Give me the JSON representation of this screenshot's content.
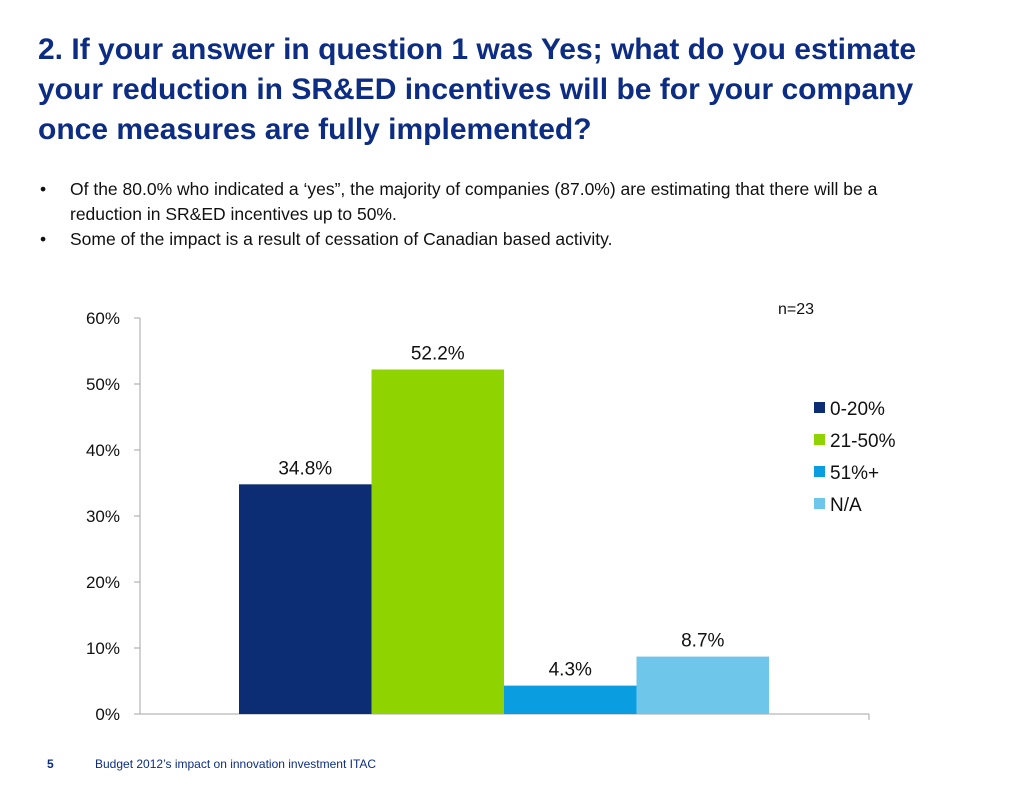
{
  "title": "2. If your answer in question 1 was Yes; what do you estimate your reduction in SR&ED incentives will be for your company once measures are fully implemented?",
  "bullets": [
    "Of the 80.0% who indicated a ‘yes”, the majority of companies (87.0%) are estimating that there will be a reduction in SR&ED incentives up to 50%.",
    "Some of the impact is a result of cessation of Canadian based activity."
  ],
  "sample_size": "n=23",
  "footer": {
    "page_number": "5",
    "text": "Budget 2012’s impact on innovation investment ITAC"
  },
  "chart_data": {
    "type": "bar",
    "ylim": [
      0,
      60
    ],
    "yticks": [
      0,
      10,
      20,
      30,
      40,
      50,
      60
    ],
    "ytick_labels": [
      "0%",
      "10%",
      "20%",
      "30%",
      "40%",
      "50%",
      "60%"
    ],
    "grid": false,
    "legend_position": "right",
    "series": [
      {
        "name": "0-20%",
        "value": 34.8,
        "label": "34.8%",
        "color": "#0c2d73"
      },
      {
        "name": "21-50%",
        "value": 52.2,
        "label": "52.2%",
        "color": "#8fd400"
      },
      {
        "name": "51%+",
        "value": 4.3,
        "label": "4.3%",
        "color": "#0a9ee0"
      },
      {
        "name": "N/A",
        "value": 8.7,
        "label": "8.7%",
        "color": "#6ec6ea"
      }
    ]
  }
}
